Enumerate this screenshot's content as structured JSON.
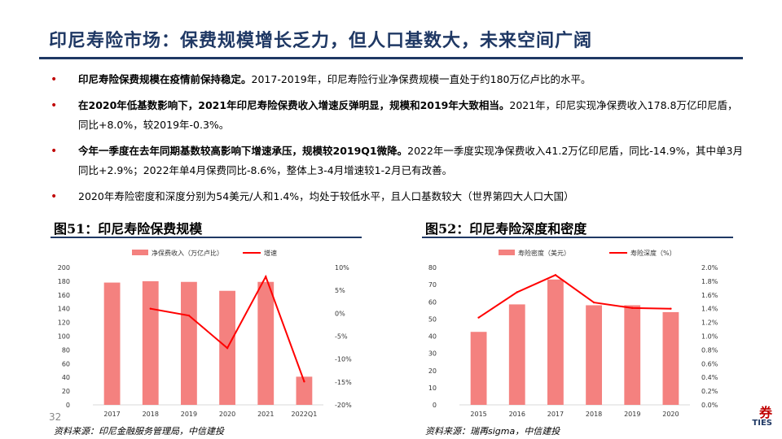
{
  "header": {
    "title": "印尼寿险市场：保费规模增长乏力，但人口基数大，未来空间广阔"
  },
  "bullets": [
    {
      "bold": "印尼寿险保费规模在疫情前保持稳定。",
      "text": "2017-2019年，印尼寿险行业净保费规模一直处于约180万亿卢比的水平。"
    },
    {
      "bold": "在2020年低基数影响下，2021年印尼寿险保费收入增速反弹明显，规模和2019年大致相当。",
      "text": "2021年，印尼实现净保费收入178.8万亿印尼盾，同比+8.0%，较2019年-0.3%。"
    },
    {
      "bold": "今年一季度在去年同期基数较高影响下增速承压，规模较2019Q1微降。",
      "text": "2022年一季度实现净保费收入41.2万亿印尼盾，同比-14.9%，其中单3月同比+2.9%；2022年单4月保费同比-8.6%，整体上3-4月增速较1-2月已有改善。"
    },
    {
      "bold": "",
      "text": "2020年寿险密度和深度分别为54美元/人和1.4%，均处于较低水平，且人口基数较大（世界第四大人口大国）"
    }
  ],
  "figures": {
    "left_title": "图51：印尼寿险保费规模",
    "right_title": "图52：印尼寿险深度和密度",
    "left_source": "资料来源：印尼金融服务管理局，中信建投",
    "right_source": "资料来源：瑞再sigma，中信建投"
  },
  "footer": {
    "page": "32",
    "logo": "券",
    "logo_sub": "TIES"
  },
  "colors": {
    "bar": "#f4817f",
    "line": "#ff0000",
    "title": "#1f3864",
    "bullet": "#c00000"
  },
  "chart_data": [
    {
      "type": "bar",
      "categories": [
        "2017",
        "2018",
        "2019",
        "2020",
        "2021",
        "2022Q1"
      ],
      "series": [
        {
          "name": "净保费收入（万亿卢比）",
          "kind": "bar",
          "axis": "left",
          "values": [
            178,
            180,
            179,
            166,
            179,
            41
          ]
        },
        {
          "name": "增速",
          "kind": "line",
          "axis": "right",
          "values": [
            null,
            1.0,
            -0.5,
            -7.6,
            8.0,
            -14.9
          ]
        }
      ],
      "ylim": [
        0,
        200
      ],
      "yticks": [
        "0",
        "20",
        "40",
        "60",
        "80",
        "100",
        "120",
        "140",
        "160",
        "180",
        "200"
      ],
      "y2lim": [
        -20,
        10
      ],
      "y2ticks": [
        "-20%",
        "-15%",
        "-10%",
        "-5%",
        "0%",
        "5%",
        "10%"
      ],
      "legend": "top"
    },
    {
      "type": "bar",
      "categories": [
        "2015",
        "2016",
        "2017",
        "2018",
        "2019",
        "2020"
      ],
      "series": [
        {
          "name": "寿险密度（美元）",
          "kind": "bar",
          "axis": "left",
          "values": [
            42.5,
            58.5,
            73,
            58,
            58,
            54
          ]
        },
        {
          "name": "寿险深度（%）",
          "kind": "line",
          "axis": "right",
          "values": [
            1.27,
            1.64,
            1.89,
            1.49,
            1.41,
            1.4
          ]
        }
      ],
      "ylim": [
        0,
        80
      ],
      "yticks": [
        "0",
        "10",
        "20",
        "30",
        "40",
        "50",
        "60",
        "70",
        "80"
      ],
      "y2lim": [
        0,
        2.0
      ],
      "y2ticks": [
        "0.0%",
        "0.2%",
        "0.4%",
        "0.6%",
        "0.8%",
        "1.0%",
        "1.2%",
        "1.4%",
        "1.6%",
        "1.8%",
        "2.0%"
      ],
      "legend": "top"
    }
  ]
}
